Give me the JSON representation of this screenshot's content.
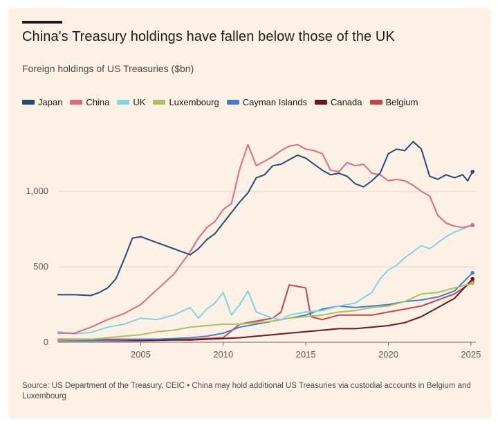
{
  "title": "China's Treasury holdings have fallen below those of the UK",
  "subtitle": "Foreign holdings of US Treasuries ($bn)",
  "source": "Source: US Department of the Treasury, CEIC • China may hold additional US Treasuries via custodial accounts in Belgium and Luxembourg",
  "colors": {
    "background": "#fdf1e6",
    "grid": "#e2d7cb",
    "axis": "#6e6862"
  },
  "chart_data": {
    "type": "line",
    "x_unit": "year",
    "xlim": [
      2000.0,
      2025.3
    ],
    "ylim": [
      0,
      1350
    ],
    "x_ticks": [
      2005,
      2010,
      2015,
      2020,
      2025
    ],
    "y_ticks": [
      0,
      500,
      1000
    ],
    "y_tick_labels": [
      "0",
      "500",
      "1,000"
    ],
    "legend_position": "top-left",
    "series": [
      {
        "name": "Japan",
        "color": "#1f4a7c",
        "x": [
          2000.0,
          2001.0,
          2002.0,
          2002.5,
          2003.0,
          2003.5,
          2004.0,
          2004.5,
          2005.0,
          2006.0,
          2007.0,
          2008.0,
          2008.5,
          2009.0,
          2009.5,
          2010.0,
          2010.5,
          2011.0,
          2011.5,
          2012.0,
          2012.5,
          2013.0,
          2013.5,
          2014.0,
          2014.5,
          2015.0,
          2015.5,
          2016.0,
          2016.5,
          2017.0,
          2017.5,
          2018.0,
          2018.5,
          2019.0,
          2019.5,
          2020.0,
          2020.5,
          2021.0,
          2021.5,
          2022.0,
          2022.5,
          2023.0,
          2023.5,
          2024.0,
          2024.5,
          2024.8,
          2025.1
        ],
        "values": [
          315,
          315,
          310,
          330,
          360,
          420,
          550,
          690,
          700,
          660,
          620,
          580,
          620,
          680,
          720,
          790,
          860,
          930,
          990,
          1090,
          1110,
          1170,
          1180,
          1210,
          1240,
          1220,
          1180,
          1140,
          1110,
          1120,
          1100,
          1050,
          1030,
          1070,
          1120,
          1250,
          1280,
          1270,
          1330,
          1280,
          1100,
          1080,
          1110,
          1090,
          1110,
          1070,
          1130
        ]
      },
      {
        "name": "China",
        "color": "#dd6b7b",
        "x": [
          2000.0,
          2001.0,
          2002.0,
          2003.0,
          2004.0,
          2005.0,
          2006.0,
          2007.0,
          2008.0,
          2008.5,
          2009.0,
          2009.5,
          2010.0,
          2010.5,
          2011.0,
          2011.5,
          2012.0,
          2012.5,
          2013.0,
          2013.5,
          2014.0,
          2014.5,
          2015.0,
          2015.5,
          2016.0,
          2016.5,
          2017.0,
          2017.5,
          2018.0,
          2018.5,
          2019.0,
          2019.5,
          2020.0,
          2020.5,
          2021.0,
          2021.5,
          2022.0,
          2022.5,
          2023.0,
          2023.5,
          2024.0,
          2024.5,
          2025.1
        ],
        "values": [
          60,
          60,
          100,
          150,
          190,
          250,
          350,
          450,
          600,
          690,
          760,
          800,
          880,
          920,
          1150,
          1310,
          1170,
          1200,
          1230,
          1270,
          1300,
          1310,
          1280,
          1270,
          1250,
          1140,
          1130,
          1190,
          1170,
          1180,
          1120,
          1110,
          1070,
          1080,
          1070,
          1040,
          1000,
          970,
          840,
          790,
          770,
          760,
          775
        ]
      },
      {
        "name": "UK",
        "color": "#7fd3e6",
        "x": [
          2000.0,
          2001.0,
          2002.0,
          2003.0,
          2004.0,
          2005.0,
          2006.0,
          2007.0,
          2008.0,
          2008.5,
          2009.0,
          2009.5,
          2010.0,
          2010.5,
          2011.0,
          2011.5,
          2012.0,
          2012.5,
          2013.0,
          2013.5,
          2014.0,
          2015.0,
          2016.0,
          2017.0,
          2018.0,
          2019.0,
          2019.5,
          2020.0,
          2020.5,
          2021.0,
          2021.5,
          2022.0,
          2022.5,
          2023.0,
          2023.5,
          2024.0,
          2024.5,
          2025.1
        ],
        "values": [
          70,
          55,
          65,
          100,
          120,
          160,
          150,
          180,
          230,
          160,
          220,
          260,
          330,
          180,
          250,
          340,
          200,
          180,
          160,
          150,
          180,
          200,
          210,
          240,
          260,
          330,
          420,
          480,
          510,
          560,
          600,
          640,
          620,
          660,
          700,
          730,
          750,
          780
        ]
      },
      {
        "name": "Luxembourg",
        "color": "#a9c25c",
        "x": [
          2000.0,
          2002.0,
          2004.0,
          2005.0,
          2006.0,
          2007.0,
          2008.0,
          2009.0,
          2010.0,
          2011.0,
          2012.0,
          2013.0,
          2014.0,
          2015.0,
          2016.0,
          2017.0,
          2018.0,
          2019.0,
          2020.0,
          2021.0,
          2022.0,
          2023.0,
          2024.0,
          2025.1
        ],
        "values": [
          15,
          20,
          40,
          50,
          70,
          80,
          100,
          110,
          120,
          120,
          130,
          140,
          160,
          170,
          180,
          200,
          210,
          230,
          240,
          270,
          320,
          330,
          360,
          390
        ]
      },
      {
        "name": "Cayman Islands",
        "color": "#3f7fcf",
        "x": [
          2000.0,
          2002.0,
          2004.0,
          2005.0,
          2006.0,
          2007.0,
          2008.0,
          2009.0,
          2010.0,
          2011.0,
          2012.0,
          2013.0,
          2014.0,
          2015.0,
          2016.0,
          2017.0,
          2018.0,
          2019.0,
          2020.0,
          2021.0,
          2022.0,
          2023.0,
          2024.0,
          2025.1
        ],
        "values": [
          10,
          10,
          15,
          20,
          20,
          25,
          30,
          40,
          60,
          100,
          120,
          140,
          160,
          180,
          220,
          240,
          230,
          240,
          250,
          270,
          280,
          300,
          340,
          460
        ]
      },
      {
        "name": "Canada",
        "color": "#6a1522",
        "x": [
          2000.0,
          2005.0,
          2007.0,
          2008.0,
          2009.0,
          2010.0,
          2011.0,
          2012.0,
          2013.0,
          2014.0,
          2015.0,
          2016.0,
          2017.0,
          2018.0,
          2019.0,
          2020.0,
          2021.0,
          2022.0,
          2023.0,
          2024.0,
          2025.1
        ],
        "values": [
          10,
          10,
          15,
          15,
          20,
          25,
          30,
          40,
          50,
          60,
          70,
          80,
          90,
          90,
          100,
          110,
          130,
          170,
          230,
          290,
          420
        ]
      },
      {
        "name": "Belgium",
        "color": "#c8424d",
        "x": [
          2000.0,
          2005.0,
          2008.0,
          2010.0,
          2011.0,
          2012.0,
          2013.0,
          2013.5,
          2014.0,
          2015.0,
          2015.3,
          2016.0,
          2017.0,
          2018.0,
          2019.0,
          2020.0,
          2021.0,
          2022.0,
          2023.0,
          2024.0,
          2025.1
        ],
        "values": [
          20,
          20,
          20,
          30,
          120,
          140,
          160,
          200,
          380,
          360,
          170,
          150,
          180,
          180,
          180,
          200,
          220,
          240,
          280,
          320,
          400
        ]
      }
    ]
  }
}
